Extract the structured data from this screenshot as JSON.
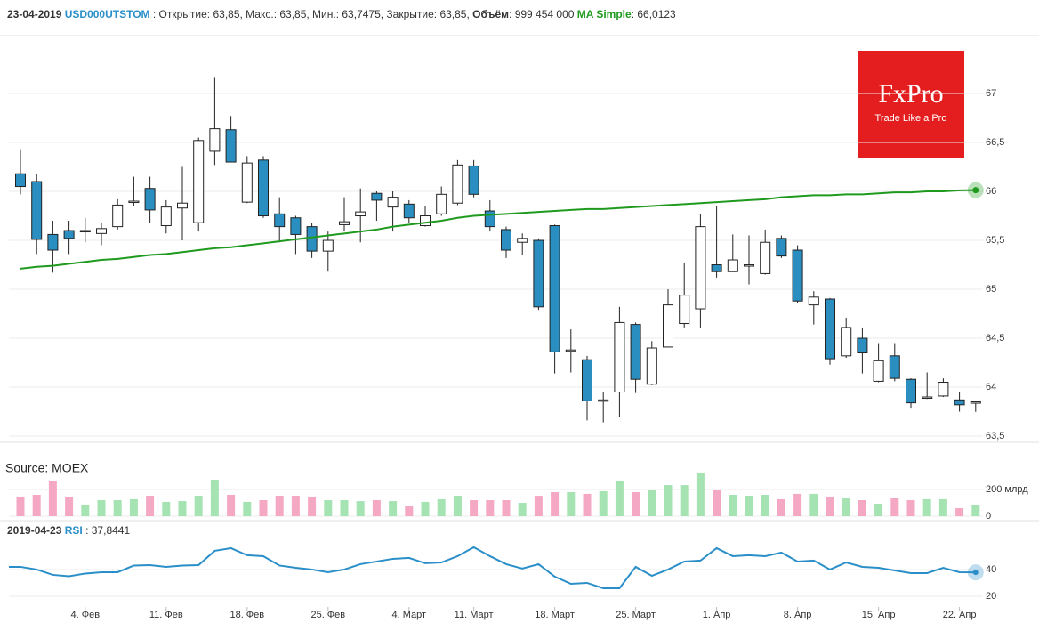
{
  "header": {
    "date": "23-04-2019",
    "ticker": "USD000UTSTOM",
    "fields": " : Открытие: 63,85, Макс.: 63,85, Мин.: 63,7475, Закрытие: 63,85, ",
    "volume_label": "Объём",
    "volume_value": ": 999 454 000",
    "ma_value": ": 66,0123",
    "logo": "FxPro",
    "slogan": "Trade Like a Pro"
  },
  "source": "Source: MOEX",
  "chart_data": [
    {
      "type": "candlestick",
      "categories": [
        null,
        null,
        null,
        null,
        "4. Фев",
        null,
        null,
        null,
        null,
        "11. Фев",
        null,
        null,
        null,
        null,
        "18. Фев",
        null,
        null,
        null,
        null,
        "25. Фев",
        null,
        null,
        null,
        null,
        "4. Март",
        null,
        null,
        null,
        "11. Март",
        null,
        null,
        null,
        null,
        "18. Март",
        null,
        null,
        null,
        null,
        "25. Март",
        null,
        null,
        null,
        null,
        "1. Апр",
        null,
        null,
        null,
        null,
        "8. Апр",
        null,
        null,
        null,
        null,
        "15. Апр",
        null,
        null,
        null,
        null,
        "22. Апр",
        null
      ],
      "open": [
        66.18,
        66.1,
        65.56,
        65.6,
        65.59,
        65.57,
        65.64,
        65.89,
        66.03,
        65.65,
        65.83,
        65.68,
        66.41,
        66.63,
        65.89,
        66.32,
        65.77,
        65.73,
        65.64,
        65.39,
        65.66,
        65.75,
        65.98,
        65.84,
        65.87,
        65.65,
        65.77,
        65.88,
        66.26,
        65.8,
        65.61,
        65.48,
        65.5,
        65.65,
        64.37,
        64.28,
        63.86,
        63.95,
        64.64,
        64.03,
        64.41,
        64.65,
        64.8,
        65.25,
        65.18,
        65.24,
        65.16,
        65.52,
        65.4,
        64.84,
        64.9,
        64.32,
        64.5,
        64.06,
        64.32,
        64.08,
        63.89,
        63.91,
        63.87,
        63.85
      ],
      "high": [
        66.43,
        66.18,
        65.7,
        65.7,
        65.73,
        65.68,
        65.92,
        66.15,
        66.15,
        65.91,
        66.25,
        66.55,
        67.16,
        66.77,
        66.36,
        66.36,
        65.94,
        65.75,
        65.68,
        65.59,
        65.94,
        66.03,
        66.0,
        66.0,
        65.91,
        65.85,
        66.05,
        66.32,
        66.32,
        65.91,
        65.64,
        65.57,
        65.52,
        65.66,
        64.59,
        64.32,
        63.95,
        64.82,
        64.66,
        64.47,
        65.0,
        65.27,
        65.77,
        65.85,
        65.56,
        65.55,
        65.61,
        65.55,
        65.45,
        64.98,
        64.91,
        64.71,
        64.61,
        64.45,
        64.45,
        64.09,
        64.15,
        64.09,
        63.95,
        63.85
      ],
      "low": [
        65.97,
        65.36,
        65.17,
        65.36,
        65.48,
        65.45,
        65.61,
        65.85,
        65.68,
        65.57,
        65.5,
        65.59,
        66.27,
        66.3,
        65.88,
        65.73,
        65.48,
        65.36,
        65.32,
        65.18,
        65.59,
        65.48,
        65.7,
        65.59,
        65.68,
        65.64,
        65.75,
        65.86,
        65.94,
        65.59,
        65.32,
        65.35,
        64.79,
        64.14,
        64.15,
        63.66,
        63.64,
        63.7,
        63.94,
        64.02,
        64.41,
        64.61,
        64.61,
        65.12,
        65.18,
        65.05,
        65.15,
        65.32,
        64.86,
        64.64,
        64.23,
        64.3,
        64.14,
        64.05,
        64.06,
        63.79,
        63.88,
        63.9,
        63.75,
        63.7475
      ],
      "close": [
        66.05,
        65.51,
        65.4,
        65.52,
        65.6,
        65.62,
        65.86,
        65.9,
        65.81,
        65.84,
        65.88,
        66.52,
        66.64,
        66.3,
        66.29,
        65.75,
        65.64,
        65.56,
        65.39,
        65.5,
        65.69,
        65.79,
        65.91,
        65.94,
        65.73,
        65.75,
        65.97,
        66.27,
        65.97,
        65.64,
        65.4,
        65.52,
        64.82,
        64.36,
        64.38,
        63.86,
        63.87,
        64.66,
        64.08,
        64.4,
        64.84,
        64.94,
        65.64,
        65.18,
        65.3,
        65.25,
        65.48,
        65.34,
        64.88,
        64.92,
        64.29,
        64.61,
        64.35,
        64.27,
        64.09,
        63.84,
        63.9,
        64.05,
        63.82,
        63.85
      ],
      "up_color": "#ffffff",
      "down_color": "#2a8fc0",
      "overlay": {
        "name": "MA Simple",
        "color": "#1f9a1f",
        "values": [
          65.21,
          65.23,
          65.24,
          65.26,
          65.28,
          65.3,
          65.31,
          65.33,
          65.35,
          65.36,
          65.38,
          65.4,
          65.42,
          65.43,
          65.45,
          65.47,
          65.49,
          65.51,
          65.53,
          65.55,
          65.57,
          65.59,
          65.61,
          65.64,
          65.66,
          65.68,
          65.7,
          65.73,
          65.75,
          65.76,
          65.77,
          65.78,
          65.79,
          65.8,
          65.81,
          65.82,
          65.82,
          65.83,
          65.84,
          65.85,
          65.86,
          65.87,
          65.88,
          65.89,
          65.9,
          65.91,
          65.92,
          65.94,
          65.95,
          65.96,
          65.96,
          65.97,
          65.97,
          65.98,
          65.99,
          65.99,
          66.0,
          66.0,
          66.01,
          66.0123
        ]
      },
      "ylim": [
        63.482,
        67.573
      ],
      "yticks": [
        67,
        {
          "value": 66.5,
          "label": "66,5"
        },
        66,
        {
          "value": 65.5,
          "label": "65,5"
        },
        65,
        {
          "value": 64.5,
          "label": "64,5"
        },
        64,
        {
          "value": 63.5,
          "label": "63,5"
        }
      ],
      "grid": true
    },
    {
      "type": "bar",
      "values": [
        147,
        160,
        267,
        147,
        87,
        120,
        120,
        127,
        153,
        107,
        113,
        153,
        273,
        160,
        107,
        120,
        153,
        153,
        147,
        120,
        120,
        113,
        120,
        113,
        80,
        107,
        127,
        153,
        120,
        120,
        120,
        100,
        153,
        180,
        180,
        167,
        187,
        267,
        180,
        193,
        233,
        233,
        327,
        200,
        160,
        153,
        160,
        127,
        167,
        167,
        147,
        140,
        120,
        93,
        140,
        120,
        127,
        127,
        60,
        87
      ],
      "up_color": "#a6e3b3",
      "down_color": "#f5a8c3",
      "ylim": [
        0,
        360
      ],
      "yticks": [
        {
          "value": 200,
          "label": "200 млрд"
        },
        0
      ],
      "grid": true
    },
    {
      "type": "line",
      "date": "2019-04-23",
      "name": "RSI",
      "value_label": ": 37,8441",
      "color": "#2a8fc8",
      "values": [
        42,
        40,
        36,
        35,
        37,
        38,
        38,
        43,
        43.3,
        42,
        43,
        43.3,
        54,
        56,
        50.7,
        50,
        43,
        41.3,
        40,
        38,
        40,
        44,
        46,
        48,
        48.7,
        44.7,
        45.3,
        50,
        56.7,
        50,
        44,
        40.7,
        44,
        34.7,
        29.3,
        30,
        26,
        26,
        42,
        35.3,
        40,
        46,
        46.7,
        56,
        50,
        50.7,
        50,
        52.7,
        46,
        46.7,
        40,
        45.3,
        42,
        41.3,
        39.3,
        37.3,
        37.3,
        41.3,
        38,
        37.8441
      ],
      "ylim": [
        13.3,
        63.3
      ],
      "yticks": [
        40,
        20
      ],
      "grid": true
    }
  ]
}
